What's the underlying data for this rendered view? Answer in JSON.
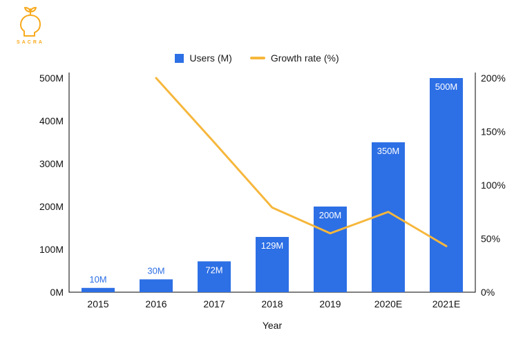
{
  "logo": {
    "brand": "SACRA",
    "color": "#F7A91C"
  },
  "legend": [
    {
      "label": "Users (M)",
      "type": "square",
      "color": "#2D6FE5"
    },
    {
      "label": "Growth rate (%)",
      "type": "line",
      "color": "#F6B73C"
    }
  ],
  "chart_data": {
    "type": "bar",
    "subtype": "bar+line combo",
    "categories": [
      "2015",
      "2016",
      "2017",
      "2018",
      "2019",
      "2020E",
      "2021E"
    ],
    "series": [
      {
        "name": "Users (M)",
        "type": "bar",
        "axis": "left",
        "color": "#2D6FE5",
        "values": [
          10,
          30,
          72,
          129,
          200,
          350,
          500
        ],
        "labels": [
          "10M",
          "30M",
          "72M",
          "129M",
          "200M",
          "350M",
          "500M"
        ]
      },
      {
        "name": "Growth rate (%)",
        "type": "line",
        "axis": "right",
        "color": "#F6B73C",
        "values": [
          null,
          200,
          140,
          79,
          55,
          75,
          43
        ]
      }
    ],
    "left_axis": {
      "ticks": [
        "0M",
        "100M",
        "200M",
        "300M",
        "400M",
        "500M"
      ],
      "min": 0,
      "max": 500
    },
    "right_axis": {
      "ticks": [
        "0%",
        "50%",
        "100%",
        "150%",
        "200%"
      ],
      "min": 0,
      "max": 200
    },
    "xlabel": "Year",
    "grid": false,
    "legend_position": "top"
  }
}
